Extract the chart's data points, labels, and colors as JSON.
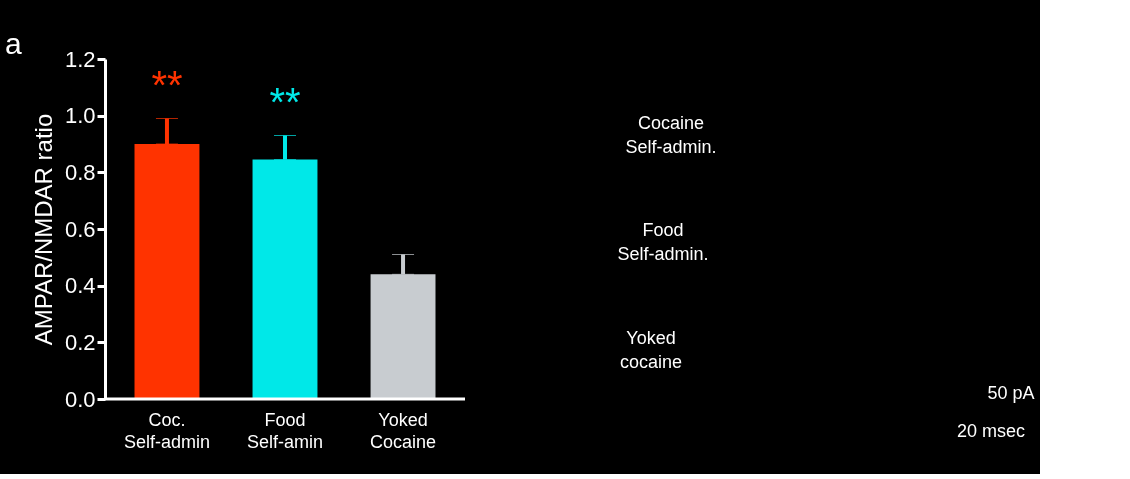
{
  "chart_data": {
    "type": "bar",
    "ylabel": "AMPAR/NMDAR ratio",
    "categories": [
      "Coc.\nSelf-admin",
      "Food\nSelf-amin",
      "Yoked\nCocaine"
    ],
    "values": [
      0.9,
      0.845,
      0.44
    ],
    "errors": [
      [
        0.9,
        0.99
      ],
      [
        0.845,
        0.93
      ],
      [
        0.44,
        0.51
      ]
    ],
    "colors": [
      "#ff3300",
      "#00e8e8",
      "#c8ccd0"
    ],
    "ylim": [
      0,
      1.2
    ],
    "yticks": [
      {
        "value": 0,
        "label": "0.0"
      },
      {
        "value": 0.2,
        "label": "0.2"
      },
      {
        "value": 0.4,
        "label": "0.4"
      },
      {
        "value": 0.6,
        "label": "0.6"
      },
      {
        "value": 0.8,
        "label": "0.8"
      },
      {
        "value": 1.0,
        "label": "1.0"
      },
      {
        "value": 1.2,
        "label": "1.2"
      }
    ],
    "grid": false,
    "annotations": [
      "**",
      "**",
      "a",
      "Cocaine\nSelf-admin.",
      "Food\nSelf-admin.",
      "Yoked\ncocaine",
      "50 pA",
      "20 msec"
    ]
  }
}
